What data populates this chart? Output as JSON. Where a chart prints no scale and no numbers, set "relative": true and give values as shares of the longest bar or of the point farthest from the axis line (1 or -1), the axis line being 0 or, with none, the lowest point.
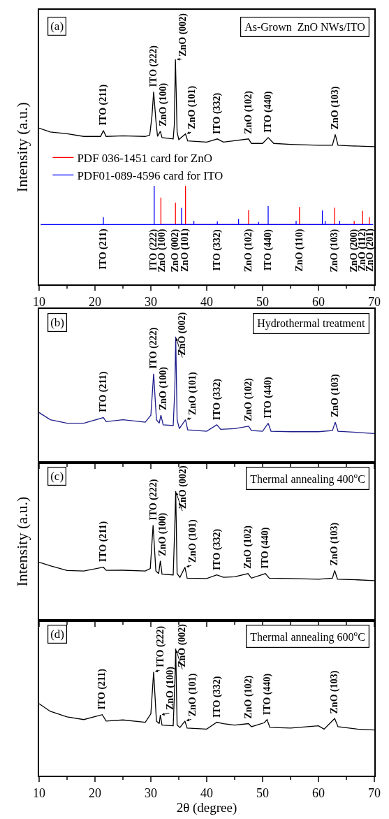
{
  "chart_data": [
    {
      "type": "line",
      "title": "As-Grown  ZnO NWs/ITO",
      "ylabel": "Intensity (a.u.)",
      "relative": true,
      "xlim": [
        10,
        70
      ],
      "xticks": [
        10,
        20,
        30,
        40,
        50,
        60,
        70
      ],
      "tick_labels": "x",
      "legend": "left",
      "series": [
        {
          "color": "#000000",
          "x": [
            10,
            12,
            15,
            18,
            21,
            21.5,
            22,
            25,
            29,
            29.8,
            30.2,
            30.5,
            30.9,
            31.2,
            31.7,
            32,
            34,
            34.2,
            34.4,
            34.7,
            35,
            36.2,
            36.6,
            40,
            41.9,
            43,
            47.5,
            48,
            50,
            51,
            52,
            55,
            60,
            62.5,
            63,
            63.5,
            66,
            70
          ],
          "values": [
            0.695,
            0.678,
            0.67,
            0.658,
            0.658,
            0.684,
            0.658,
            0.661,
            0.658,
            0.664,
            0.749,
            0.856,
            0.729,
            0.658,
            0.681,
            0.653,
            0.647,
            0.709,
            1.0,
            0.678,
            0.644,
            0.669,
            0.638,
            0.633,
            0.647,
            0.633,
            0.647,
            0.627,
            0.627,
            0.653,
            0.627,
            0.623,
            0.619,
            0.619,
            0.667,
            0.619,
            0.616,
            0.613
          ]
        },
        {
          "name": "PDF 036-1451 card for ZnO",
          "color": "#ff0000",
          "x": [
            31.8,
            31.8,
            31.8,
            34.4,
            34.4,
            34.4,
            36.2,
            36.2,
            36.2,
            47.5,
            47.5,
            47.5,
            56.6,
            56.6,
            56.6,
            62.9,
            62.9,
            62.9,
            66.4,
            66.4,
            66.4,
            67.9,
            67.9,
            67.9,
            69.1,
            69.1,
            69.1
          ],
          "values": [
            0.267,
            0.387,
            0.267,
            0.267,
            0.364,
            0.267,
            0.267,
            0.439,
            0.267,
            0.267,
            0.331,
            0.267,
            0.267,
            0.345,
            0.267,
            0.267,
            0.342,
            0.267,
            0.267,
            0.284,
            0.267,
            0.267,
            0.328,
            0.267,
            0.267,
            0.3,
            0.267
          ]
        },
        {
          "name": "PDF01-089-4596 card for ITO",
          "color": "#0000ff",
          "x": [
            10.3,
            21.5,
            21.5,
            21.5,
            30.6,
            30.6,
            30.6,
            35.5,
            35.5,
            35.5,
            37.7,
            37.7,
            37.7,
            41.9,
            41.9,
            41.9,
            45.7,
            45.7,
            45.7,
            49.3,
            49.3,
            49.3,
            51.0,
            51.0,
            51.0,
            56.0,
            56.0,
            56.0,
            60.7,
            60.7,
            60.7,
            61.2,
            61.2,
            61.2,
            63.8,
            63.8,
            63.8,
            69.8
          ],
          "values": [
            0.267,
            0.267,
            0.3,
            0.267,
            0.267,
            0.439,
            0.267,
            0.267,
            0.341,
            0.267,
            0.267,
            0.284,
            0.267,
            0.267,
            0.281,
            0.267,
            0.267,
            0.292,
            0.267,
            0.267,
            0.279,
            0.267,
            0.267,
            0.349,
            0.267,
            0.267,
            0.284,
            0.267,
            0.267,
            0.329,
            0.267,
            0.267,
            0.284,
            0.267,
            0.267,
            0.284,
            0.267,
            0.267
          ]
        }
      ],
      "annotations": [
        "(a)",
        {
          "text": "ITO (211)",
          "x": 21.5,
          "y": 0.684
        },
        {
          "text": "ITO (222)",
          "x": 30.5,
          "y": 0.856
        },
        {
          "text": "ZnO (100)",
          "x": 31.7,
          "y": 0.681
        },
        {
          "text": "ZnO (002)",
          "x": 34.4,
          "y": 1.0
        },
        {
          "text": "ZnO (101)",
          "x": 36.2,
          "y": 0.669
        },
        {
          "text": "ITO (332)",
          "x": 41.9,
          "y": 0.647
        },
        {
          "text": "ZnO (102)",
          "x": 47.5,
          "y": 0.647
        },
        {
          "text": "ITO (440)",
          "x": 51,
          "y": 0.653
        },
        {
          "text": "ZnO (103)",
          "x": 63,
          "y": 0.667
        },
        {
          "text": "ITO (211)",
          "x": 21.5,
          "y": 0.267
        },
        {
          "text": "ITO (222)",
          "x": 30.6,
          "y": 0.267
        },
        {
          "text": "ZnO (100)",
          "x": 31.8,
          "y": 0.267
        },
        {
          "text": "ZnO (002)",
          "x": 34.4,
          "y": 0.267
        },
        {
          "text": "ZnO (101)",
          "x": 36.2,
          "y": 0.267
        },
        {
          "text": "ITO (332)",
          "x": 41.9,
          "y": 0.267
        },
        {
          "text": "ZnO (102)",
          "x": 47.5,
          "y": 0.267
        },
        {
          "text": "ITO (440)",
          "x": 51.0,
          "y": 0.267
        },
        {
          "text": "ZnO (110)",
          "x": 56.6,
          "y": 0.267
        },
        {
          "text": "ZnO (103)",
          "x": 62.9,
          "y": 0.267
        },
        {
          "text": "ZnO (200)",
          "x": 66.4,
          "y": 0.267
        },
        {
          "text": "ZnO (112)",
          "x": 67.9,
          "y": 0.267
        },
        {
          "text": "ZnO (201)",
          "x": 69.1,
          "y": 0.267
        }
      ]
    },
    {
      "type": "line",
      "title": "Hydrothermal treatment",
      "relative": true,
      "xlim": [
        10,
        70
      ],
      "xticks": [
        10,
        20,
        30,
        40,
        50,
        60,
        70
      ],
      "tick_labels": false,
      "series": [
        {
          "color": "#1c1c8a",
          "x": [
            10,
            12,
            15,
            18,
            21.5,
            22,
            25,
            29,
            30.0,
            30.5,
            31.0,
            31.5,
            31.8,
            32.2,
            34.0,
            34.3,
            34.45,
            34.7,
            35.1,
            36.2,
            36.6,
            40,
            41.8,
            42.5,
            45,
            47.5,
            48,
            50,
            51,
            51.5,
            55,
            60,
            62.5,
            63.0,
            63.5,
            67,
            70
          ],
          "values": [
            0.397,
            0.34,
            0.312,
            0.312,
            0.357,
            0.325,
            0.34,
            0.321,
            0.376,
            0.706,
            0.34,
            0.312,
            0.376,
            0.3,
            0.294,
            0.594,
            1.0,
            0.34,
            0.269,
            0.34,
            0.259,
            0.249,
            0.3,
            0.264,
            0.269,
            0.289,
            0.254,
            0.249,
            0.312,
            0.249,
            0.245,
            0.245,
            0.254,
            0.321,
            0.249,
            0.239,
            0.23
          ]
        }
      ],
      "annotations": [
        "(b)",
        {
          "text": "ITO (211)",
          "x": 21.5,
          "y": 0.357
        },
        {
          "text": "ITO (222)",
          "x": 30.5,
          "y": 0.706
        },
        {
          "text": "ZnO (100)",
          "x": 31.8,
          "y": 0.376
        },
        {
          "text": "ZnO (002)",
          "x": 34.45,
          "y": 1.0
        },
        {
          "text": "ZnO (101)",
          "x": 36.2,
          "y": 0.34
        },
        {
          "text": "ITO (332)",
          "x": 41.8,
          "y": 0.3
        },
        {
          "text": "ZnO (102)",
          "x": 47.5,
          "y": 0.289
        },
        {
          "text": "ITO (440)",
          "x": 51,
          "y": 0.312
        },
        {
          "text": "ZnO (103)",
          "x": 63.0,
          "y": 0.321
        }
      ]
    },
    {
      "type": "line",
      "title": "Thermal annealing 400$^{o}$C",
      "ylabel": "Intensity (a.u.)",
      "relative": true,
      "xlim": [
        10,
        70
      ],
      "xticks": [
        10,
        20,
        30,
        40,
        50,
        60,
        70
      ],
      "tick_labels": false,
      "series": [
        {
          "color": "#000000",
          "x": [
            10,
            12,
            15,
            18,
            21.5,
            22,
            25,
            29,
            29.9,
            30.4,
            30.9,
            31.4,
            31.7,
            32,
            34.0,
            34.3,
            34.45,
            34.7,
            35.2,
            36.1,
            36.5,
            40,
            41.8,
            43,
            45,
            47.4,
            48,
            50.5,
            51.2,
            55,
            60,
            62.5,
            62.9,
            63.4,
            67,
            70
          ],
          "values": [
            0.451,
            0.424,
            0.388,
            0.384,
            0.413,
            0.389,
            0.39,
            0.384,
            0.403,
            0.737,
            0.384,
            0.364,
            0.462,
            0.36,
            0.354,
            0.752,
            1.0,
            0.364,
            0.335,
            0.413,
            0.329,
            0.326,
            0.354,
            0.335,
            0.34,
            0.364,
            0.329,
            0.364,
            0.329,
            0.326,
            0.321,
            0.329,
            0.388,
            0.321,
            0.316,
            0.31
          ]
        }
      ],
      "annotations": [
        "(c)",
        {
          "text": "ITO (211)",
          "x": 21.5,
          "y": 0.413
        },
        {
          "text": "ITO (222)",
          "x": 30.4,
          "y": 0.737
        },
        {
          "text": "ZnO (100)",
          "x": 31.7,
          "y": 0.462
        },
        {
          "text": "ZnO (002)",
          "x": 34.45,
          "y": 1.0
        },
        {
          "text": "ZnO (101)",
          "x": 36.1,
          "y": 0.413
        },
        {
          "text": "ITO (332)",
          "x": 41.8,
          "y": 0.354
        },
        {
          "text": "ZnO (102)",
          "x": 47.4,
          "y": 0.364
        },
        {
          "text": "ITO (440)",
          "x": 50.5,
          "y": 0.364
        },
        {
          "text": "ZnO (103)",
          "x": 62.9,
          "y": 0.388
        }
      ]
    },
    {
      "type": "line",
      "title": "Thermal annealing 600$^{o}$C",
      "xlabel": "2θ (degree)",
      "relative": true,
      "xlim": [
        10,
        70
      ],
      "xticks": [
        10,
        20,
        30,
        40,
        50,
        60,
        70
      ],
      "tick_labels": "x",
      "series": [
        {
          "color": "#000000",
          "x": [
            10,
            12,
            15,
            18,
            21.3,
            22,
            25,
            29,
            30.0,
            30.5,
            31.0,
            31.5,
            31.7,
            32,
            34.0,
            34.3,
            34.45,
            34.7,
            35.2,
            36.1,
            36.5,
            40,
            41.8,
            43,
            45,
            47.5,
            48,
            50.3,
            50.8,
            51.3,
            55,
            60,
            61,
            62.9,
            63.5,
            67,
            70
          ],
          "values": [
            0.567,
            0.507,
            0.463,
            0.442,
            0.481,
            0.43,
            0.439,
            0.421,
            0.487,
            0.818,
            0.43,
            0.41,
            0.478,
            0.399,
            0.393,
            0.743,
            1.0,
            0.399,
            0.379,
            0.43,
            0.375,
            0.367,
            0.421,
            0.41,
            0.399,
            0.41,
            0.386,
            0.417,
            0.442,
            0.38,
            0.375,
            0.393,
            0.367,
            0.45,
            0.386,
            0.367,
            0.36
          ]
        }
      ],
      "annotations": [
        "(d)",
        {
          "text": "ITO (211)",
          "x": 21.3,
          "y": 0.481
        },
        {
          "text": "ITO (222)",
          "x": 30.5,
          "y": 0.818
        },
        {
          "text": "ZnO (100)",
          "x": 31.7,
          "y": 0.478
        },
        {
          "text": "ZnO (002)",
          "x": 34.45,
          "y": 1.0
        },
        {
          "text": "ZnO (101)",
          "x": 36.1,
          "y": 0.43
        },
        {
          "text": "ITO (332)",
          "x": 41.8,
          "y": 0.421
        },
        {
          "text": "ZnO (102)",
          "x": 47.5,
          "y": 0.41
        },
        {
          "text": "ITO (440)",
          "x": 50.8,
          "y": 0.442
        },
        {
          "text": "ZnO (103)",
          "x": 62.9,
          "y": 0.45
        }
      ]
    }
  ]
}
